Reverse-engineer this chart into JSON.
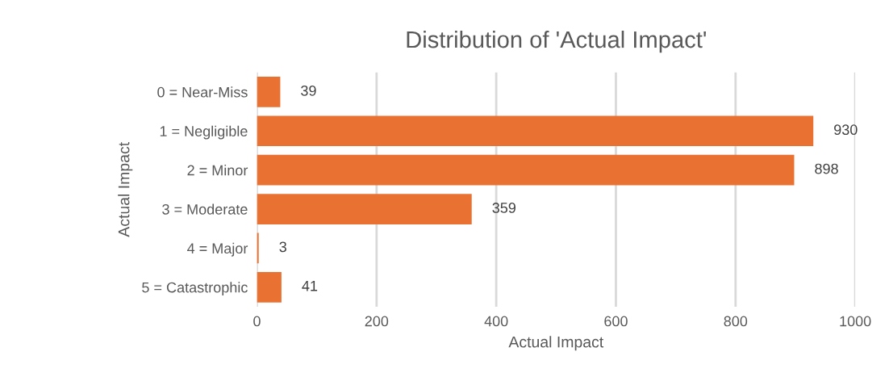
{
  "chart_data": {
    "type": "bar",
    "orientation": "horizontal",
    "title": "Distribution of 'Actual Impact'",
    "xlabel": "Actual Impact",
    "ylabel": "Actual Impact",
    "categories": [
      "0 = Near-Miss",
      "1 = Negligible",
      "2 = Minor",
      "3 = Moderate",
      "4 = Major",
      "5 = Catastrophic"
    ],
    "values": [
      39,
      930,
      898,
      359,
      3,
      41
    ],
    "color": "#e97132",
    "xlim": [
      0,
      1000
    ],
    "xticks": [
      0,
      200,
      400,
      600,
      800,
      1000
    ],
    "grid": "x",
    "data_labels": true
  }
}
